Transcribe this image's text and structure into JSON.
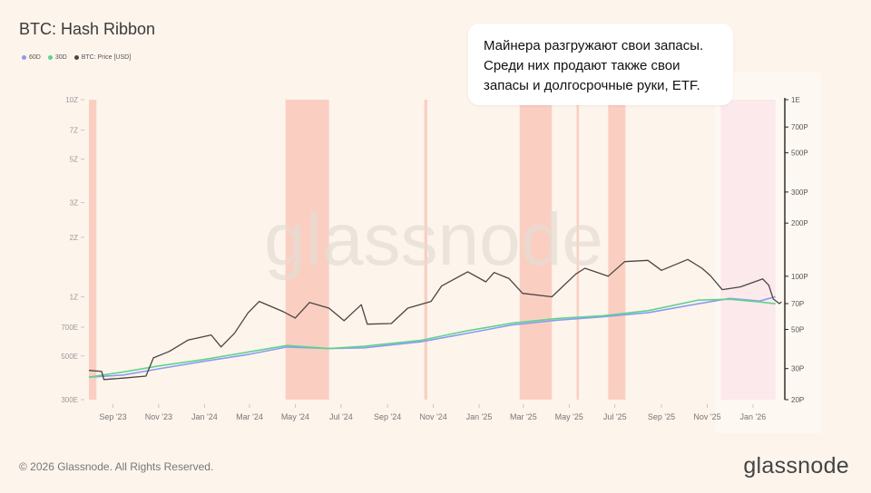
{
  "header": {
    "title": "BTC: Hash Ribbon"
  },
  "callout": {
    "lines": [
      "Майнера разгружают свои запасы.",
      "Среди них продают также свои",
      "запасы и долгосрочные руки, ETF."
    ]
  },
  "footer": {
    "copyright": "© 2026 Glassnode. All Rights Reserved.",
    "brand": "glassnode"
  },
  "watermark": "glassnode",
  "colors": {
    "ma60": "#8b9bf0",
    "ma30": "#5fd38f",
    "price": "#4a4543",
    "capitulation": "#f7b1a0",
    "highlight": "#f9d7dd"
  },
  "chart_data": {
    "type": "line",
    "title": "BTC: Hash Ribbon",
    "legend": [
      "60D",
      "30D",
      "BTC: Price [USD]"
    ],
    "legend_placement": "top-left",
    "x_ticks": [
      "Sep '23",
      "Nov '23",
      "Jan '24",
      "Mar '24",
      "May '24",
      "Jul '24",
      "Sep '24",
      "Nov '24",
      "Jan '25",
      "Mar '25",
      "May '25",
      "Jul '25",
      "Sep '25",
      "Nov '25",
      "Jan '26"
    ],
    "left_axis": {
      "ticks": [
        "10Z",
        "7Z",
        "5Z",
        "3Z",
        "2Z",
        "1Z",
        "700E",
        "500E",
        "300E"
      ],
      "log": true
    },
    "right_axis": {
      "ticks": [
        "1E",
        "700P",
        "500P",
        "300P",
        "200P",
        "100P",
        "70P",
        "50P",
        "30P",
        "20P"
      ],
      "log": true
    },
    "grid": false,
    "capitulation_bands": [
      {
        "start": "2023-07-31",
        "end": "2023-08-10"
      },
      {
        "start": "2024-04-18",
        "end": "2024-06-15"
      },
      {
        "start": "2024-10-20",
        "end": "2024-10-24"
      },
      {
        "start": "2025-02-24",
        "end": "2025-04-08"
      },
      {
        "start": "2025-05-11",
        "end": "2025-05-14"
      },
      {
        "start": "2025-06-22",
        "end": "2025-07-15"
      },
      {
        "start": "2025-11-19",
        "end": "2026-01-31"
      }
    ],
    "series": [
      {
        "name": "60D",
        "unit": "hash",
        "points": [
          [
            "2023-07-31",
            390
          ],
          [
            "2023-09-15",
            400
          ],
          [
            "2023-11-01",
            430
          ],
          [
            "2024-01-01",
            470
          ],
          [
            "2024-03-01",
            510
          ],
          [
            "2024-04-20",
            555
          ],
          [
            "2024-06-15",
            545
          ],
          [
            "2024-08-01",
            550
          ],
          [
            "2024-10-15",
            590
          ],
          [
            "2024-12-15",
            650
          ],
          [
            "2025-02-15",
            720
          ],
          [
            "2025-04-15",
            760
          ],
          [
            "2025-06-15",
            790
          ],
          [
            "2025-08-15",
            830
          ],
          [
            "2025-10-20",
            920
          ],
          [
            "2025-12-01",
            980
          ],
          [
            "2026-01-10",
            950
          ],
          [
            "2026-01-31",
            1000
          ]
        ]
      },
      {
        "name": "30D",
        "unit": "hash",
        "points": [
          [
            "2023-07-31",
            390
          ],
          [
            "2023-09-15",
            415
          ],
          [
            "2023-11-01",
            445
          ],
          [
            "2024-01-01",
            480
          ],
          [
            "2024-03-01",
            525
          ],
          [
            "2024-04-20",
            565
          ],
          [
            "2024-06-15",
            545
          ],
          [
            "2024-08-01",
            560
          ],
          [
            "2024-10-15",
            600
          ],
          [
            "2024-12-15",
            670
          ],
          [
            "2025-02-15",
            735
          ],
          [
            "2025-04-15",
            775
          ],
          [
            "2025-06-15",
            800
          ],
          [
            "2025-08-15",
            850
          ],
          [
            "2025-10-20",
            960
          ],
          [
            "2025-12-01",
            970
          ],
          [
            "2026-01-10",
            940
          ],
          [
            "2026-01-31",
            920
          ]
        ]
      },
      {
        "name": "BTC: Price [USD]",
        "unit": "USD",
        "points": [
          [
            "2023-07-31",
            29300
          ],
          [
            "2023-08-17",
            28900
          ],
          [
            "2023-08-20",
            26000
          ],
          [
            "2023-09-15",
            26500
          ],
          [
            "2023-10-15",
            27200
          ],
          [
            "2023-10-25",
            34500
          ],
          [
            "2023-11-15",
            37500
          ],
          [
            "2023-12-10",
            43500
          ],
          [
            "2024-01-10",
            46500
          ],
          [
            "2024-01-23",
            39800
          ],
          [
            "2024-02-10",
            47500
          ],
          [
            "2024-02-28",
            62000
          ],
          [
            "2024-03-14",
            72000
          ],
          [
            "2024-04-15",
            63000
          ],
          [
            "2024-05-01",
            58000
          ],
          [
            "2024-05-20",
            71000
          ],
          [
            "2024-06-15",
            66000
          ],
          [
            "2024-07-05",
            56000
          ],
          [
            "2024-07-28",
            69000
          ],
          [
            "2024-08-05",
            53500
          ],
          [
            "2024-09-06",
            54000
          ],
          [
            "2024-09-28",
            66000
          ],
          [
            "2024-10-29",
            72000
          ],
          [
            "2024-11-12",
            88000
          ],
          [
            "2024-12-17",
            106000
          ],
          [
            "2025-01-10",
            93000
          ],
          [
            "2025-01-21",
            105000
          ],
          [
            "2025-02-10",
            97000
          ],
          [
            "2025-02-28",
            80000
          ],
          [
            "2025-04-08",
            76500
          ],
          [
            "2025-05-10",
            103000
          ],
          [
            "2025-05-22",
            111000
          ],
          [
            "2025-06-22",
            100000
          ],
          [
            "2025-07-14",
            121000
          ],
          [
            "2025-08-14",
            123000
          ],
          [
            "2025-09-01",
            108000
          ],
          [
            "2025-10-06",
            124500
          ],
          [
            "2025-10-25",
            111000
          ],
          [
            "2025-11-05",
            101000
          ],
          [
            "2025-11-21",
            84000
          ],
          [
            "2025-12-15",
            87000
          ],
          [
            "2026-01-14",
            96500
          ],
          [
            "2026-01-22",
            89000
          ],
          [
            "2026-01-28",
            74500
          ],
          [
            "2026-02-05",
            70000
          ],
          [
            "2026-02-08",
            71500
          ]
        ]
      }
    ]
  }
}
